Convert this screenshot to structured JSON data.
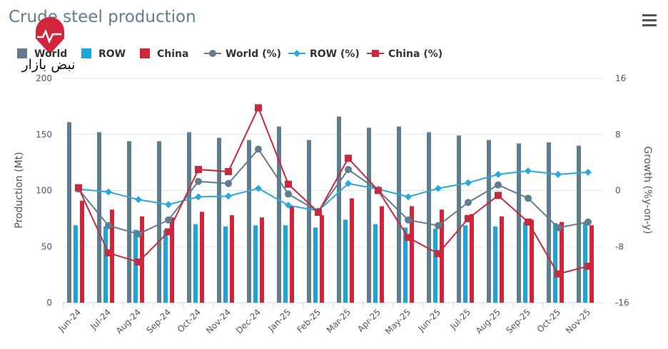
{
  "chart_data": {
    "type": "bar",
    "title": "Crude steel production",
    "watermark": "نبض بازار",
    "y_label": "Production (Mt)",
    "y2_label": "Growth (%y-on-y)",
    "categories": [
      "Jun-24",
      "Jul-24",
      "Aug-24",
      "Sep-24",
      "Oct-24",
      "Nov-24",
      "Dec-24",
      "Jan-25",
      "Feb-25",
      "Mar-25",
      "Apr-25",
      "May-25",
      "Jun-25",
      "Jul-25",
      "Aug-25",
      "Sep-25",
      "Oct-25",
      "Nov-25"
    ],
    "ylim": [
      0,
      200
    ],
    "yticks": [
      0,
      50,
      100,
      150,
      200
    ],
    "y2lim": [
      -16,
      16
    ],
    "y2ticks": [
      -16,
      -8,
      0,
      8,
      16
    ],
    "grid": true,
    "legend": "top",
    "series": [
      {
        "name": "World",
        "type": "bar",
        "color": "#5f7d8e",
        "values": [
          161,
          152,
          144,
          144,
          152,
          147,
          145,
          157,
          145,
          166,
          156,
          157,
          152,
          149,
          145,
          142,
          143,
          140
        ]
      },
      {
        "name": "ROW",
        "type": "bar",
        "color": "#1aa7d8",
        "values": [
          69,
          68,
          65,
          65,
          70,
          68,
          69,
          69,
          67,
          74,
          70,
          67,
          66,
          69,
          68,
          72,
          71,
          72
        ]
      },
      {
        "name": "China",
        "type": "bar",
        "color": "#d0253a",
        "values": [
          91,
          83,
          77,
          76,
          81,
          78,
          76,
          86,
          78,
          93,
          86,
          86,
          83,
          79,
          77,
          74,
          72,
          69
        ]
      },
      {
        "name": "World (%)",
        "type": "line",
        "marker": "circle",
        "axis": "y2",
        "color": "#5f7d8e",
        "values": [
          0.2,
          -5.0,
          -6.2,
          -4.2,
          1.3,
          1.0,
          5.9,
          -0.5,
          -3.0,
          3.0,
          0,
          -4.2,
          -5.0,
          -1.7,
          0.8,
          -1.1,
          -5.3,
          -4.5
        ]
      },
      {
        "name": "ROW (%)",
        "type": "line",
        "marker": "diamond",
        "axis": "y2",
        "color": "#29a9dc",
        "values": [
          0.2,
          -0.2,
          -1.3,
          -2.0,
          -0.9,
          -0.8,
          0.3,
          -2.1,
          -2.9,
          1.0,
          0.2,
          -0.9,
          0.3,
          1.1,
          2.3,
          2.8,
          2.3,
          2.6
        ]
      },
      {
        "name": "China (%)",
        "type": "line",
        "marker": "square",
        "axis": "y2",
        "color": "#c8293c",
        "values": [
          0.4,
          -8.9,
          -10.2,
          -5.9,
          3.0,
          2.7,
          11.8,
          0.9,
          -3.1,
          4.6,
          0,
          -6.7,
          -9.0,
          -4.0,
          -0.7,
          -4.5,
          -11.9,
          -10.8
        ]
      }
    ]
  }
}
